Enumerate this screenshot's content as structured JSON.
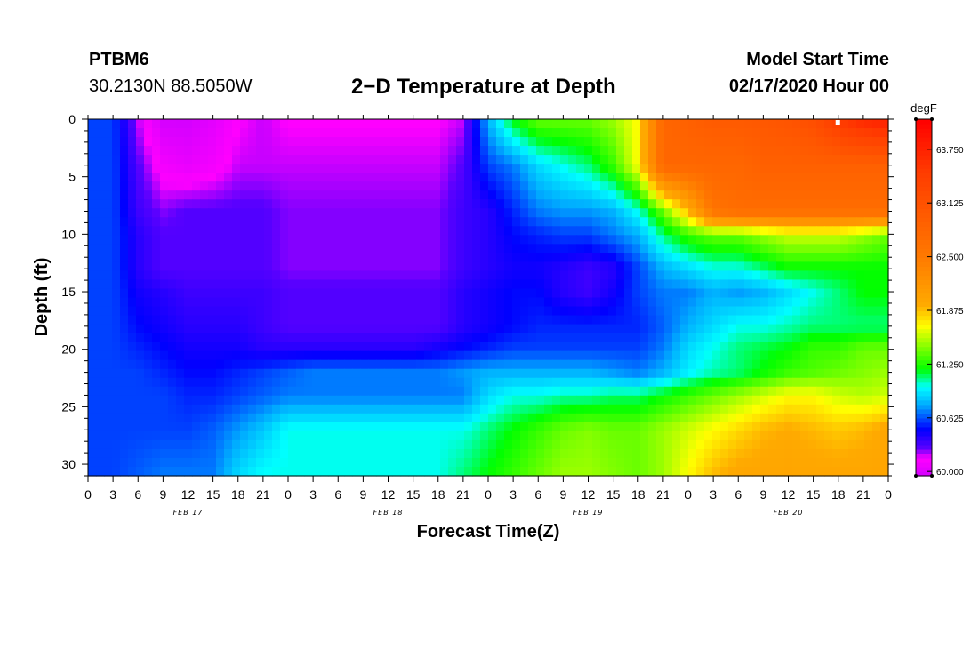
{
  "header": {
    "station_id": "PTBM6",
    "coordinates": "30.2130N 88.5050W",
    "title": "2−D Temperature at Depth",
    "model_start_label": "Model Start Time",
    "model_start_value": "02/17/2020 Hour 00"
  },
  "chart_data": {
    "type": "heatmap",
    "title": "2−D Temperature at Depth",
    "xlabel": "Forecast Time(Z)",
    "ylabel": "Depth (ft)",
    "x_unit": "hours since 02/17/2020 00Z",
    "xlim": [
      0,
      96
    ],
    "ylim": [
      0,
      31
    ],
    "y_ticks": [
      0,
      5,
      10,
      15,
      20,
      25,
      30
    ],
    "x_tick_labels": [
      "0",
      "3",
      "6",
      "9",
      "12",
      "15",
      "18",
      "21",
      "0",
      "3",
      "6",
      "9",
      "12",
      "15",
      "18",
      "21",
      "0",
      "3",
      "6",
      "9",
      "12",
      "15",
      "18",
      "21",
      "0",
      "3",
      "6",
      "9",
      "12",
      "15",
      "18",
      "21",
      "0"
    ],
    "day_labels": [
      {
        "text": "FEB 17",
        "hour": 12
      },
      {
        "text": "FEB 18",
        "hour": 36
      },
      {
        "text": "FEB 19",
        "hour": 60
      },
      {
        "text": "FEB 20",
        "hour": 84
      }
    ],
    "colorbar": {
      "unit": "degF",
      "min": 59.95,
      "max": 64.1,
      "tick_values": [
        60.0,
        60.625,
        61.25,
        61.875,
        62.5,
        63.125,
        63.75
      ],
      "tick_labels": [
        "60.000",
        "60.625",
        "61.250",
        "61.875",
        "62.500",
        "63.125",
        "63.750"
      ]
    },
    "depths_ft": [
      0,
      4,
      8,
      10,
      13,
      15,
      18,
      20,
      22,
      24,
      27,
      31
    ],
    "times_hr": [
      0,
      3,
      6,
      9,
      12,
      15,
      18,
      21,
      24,
      27,
      30,
      33,
      36,
      39,
      42,
      45,
      48,
      51,
      54,
      57,
      60,
      63,
      66,
      69,
      72,
      75,
      78,
      81,
      84,
      87,
      90,
      93,
      96
    ],
    "temperature_degF": [
      [
        60.6,
        60.6,
        60.2,
        59.95,
        59.95,
        60.02,
        60.15,
        60.2,
        60.15,
        60.15,
        60.15,
        60.15,
        60.15,
        60.15,
        60.15,
        60.2,
        60.8,
        61.2,
        61.4,
        61.4,
        61.4,
        61.5,
        61.7,
        62.8,
        62.9,
        63.0,
        63.0,
        63.05,
        63.1,
        63.2,
        63.5,
        63.7,
        63.8
      ],
      [
        60.6,
        60.6,
        60.3,
        60.1,
        60.05,
        60.1,
        60.2,
        60.2,
        60.2,
        60.2,
        60.2,
        60.2,
        60.2,
        60.2,
        60.2,
        60.3,
        60.6,
        60.7,
        60.9,
        61.0,
        61.1,
        61.3,
        61.7,
        62.8,
        62.8,
        62.8,
        62.8,
        62.9,
        62.9,
        62.9,
        62.9,
        62.9,
        62.9
      ],
      [
        60.6,
        60.6,
        60.35,
        60.25,
        60.3,
        60.3,
        60.3,
        60.3,
        60.25,
        60.25,
        60.25,
        60.25,
        60.25,
        60.25,
        60.25,
        60.35,
        60.4,
        60.55,
        60.7,
        60.75,
        60.75,
        60.8,
        61.0,
        61.4,
        61.9,
        62.6,
        62.7,
        62.7,
        62.7,
        62.7,
        62.7,
        62.7,
        62.7
      ],
      [
        60.6,
        60.6,
        60.4,
        60.3,
        60.3,
        60.3,
        60.3,
        60.3,
        60.25,
        60.25,
        60.25,
        60.25,
        60.25,
        60.25,
        60.25,
        60.35,
        60.4,
        60.5,
        60.55,
        60.6,
        60.6,
        60.7,
        60.8,
        61.1,
        61.3,
        61.4,
        61.4,
        61.5,
        61.6,
        61.6,
        61.6,
        61.5,
        61.4
      ],
      [
        60.6,
        60.6,
        60.4,
        60.3,
        60.3,
        60.3,
        60.3,
        60.3,
        60.25,
        60.25,
        60.25,
        60.25,
        60.25,
        60.25,
        60.25,
        60.35,
        60.4,
        60.45,
        60.45,
        60.4,
        60.35,
        60.4,
        60.6,
        60.8,
        60.9,
        61.0,
        61.0,
        61.1,
        61.2,
        61.2,
        61.2,
        61.2,
        61.2
      ],
      [
        60.6,
        60.6,
        60.45,
        60.4,
        60.35,
        60.35,
        60.35,
        60.35,
        60.3,
        60.3,
        60.3,
        60.3,
        60.3,
        60.3,
        60.3,
        60.4,
        60.45,
        60.5,
        60.5,
        60.4,
        60.35,
        60.45,
        60.6,
        60.7,
        60.7,
        60.8,
        60.75,
        60.8,
        60.9,
        61.0,
        61.1,
        61.2,
        61.2
      ],
      [
        60.6,
        60.6,
        60.5,
        60.45,
        60.4,
        60.4,
        60.4,
        60.35,
        60.3,
        60.3,
        60.3,
        60.3,
        60.3,
        60.3,
        60.3,
        60.4,
        60.45,
        60.5,
        60.55,
        60.55,
        60.55,
        60.55,
        60.55,
        60.65,
        60.8,
        60.9,
        61.0,
        61.0,
        61.05,
        61.1,
        61.1,
        61.1,
        61.1
      ],
      [
        60.6,
        60.6,
        60.55,
        60.5,
        60.45,
        60.45,
        60.45,
        60.4,
        60.4,
        60.4,
        60.4,
        60.4,
        60.4,
        60.4,
        60.45,
        60.5,
        60.55,
        60.6,
        60.6,
        60.6,
        60.6,
        60.6,
        60.6,
        60.7,
        60.9,
        61.0,
        61.1,
        61.15,
        61.2,
        61.3,
        61.3,
        61.4,
        61.4
      ],
      [
        60.6,
        60.6,
        60.6,
        60.55,
        60.5,
        60.5,
        60.55,
        60.6,
        60.65,
        60.7,
        60.7,
        60.7,
        60.7,
        60.7,
        60.7,
        60.75,
        60.8,
        60.8,
        60.8,
        60.8,
        60.8,
        60.75,
        60.7,
        60.8,
        60.95,
        61.05,
        61.1,
        61.2,
        61.3,
        61.35,
        61.4,
        61.45,
        61.5
      ],
      [
        60.6,
        60.6,
        60.6,
        60.6,
        60.55,
        60.55,
        60.6,
        60.65,
        60.7,
        60.7,
        60.7,
        60.7,
        60.7,
        60.7,
        60.7,
        60.7,
        60.9,
        61.0,
        61.0,
        61.05,
        61.05,
        61.1,
        61.1,
        61.2,
        61.3,
        61.4,
        61.5,
        61.6,
        61.7,
        61.7,
        61.6,
        61.55,
        61.6
      ],
      [
        60.6,
        60.6,
        60.6,
        60.6,
        60.6,
        60.65,
        60.75,
        60.85,
        61.0,
        61.0,
        61.0,
        61.0,
        61.0,
        61.0,
        61.0,
        61.0,
        61.1,
        61.2,
        61.3,
        61.4,
        61.45,
        61.4,
        61.4,
        61.5,
        61.6,
        61.7,
        61.8,
        61.9,
        61.95,
        61.9,
        61.85,
        61.9,
        62.0
      ],
      [
        60.6,
        60.6,
        60.65,
        60.7,
        60.7,
        60.7,
        60.9,
        61.0,
        61.0,
        61.0,
        61.0,
        61.0,
        61.0,
        61.0,
        61.0,
        61.1,
        61.2,
        61.3,
        61.4,
        61.5,
        61.5,
        61.45,
        61.4,
        61.5,
        61.7,
        61.9,
        62.0,
        62.0,
        62.0,
        62.0,
        62.0,
        62.0,
        62.0
      ]
    ]
  }
}
